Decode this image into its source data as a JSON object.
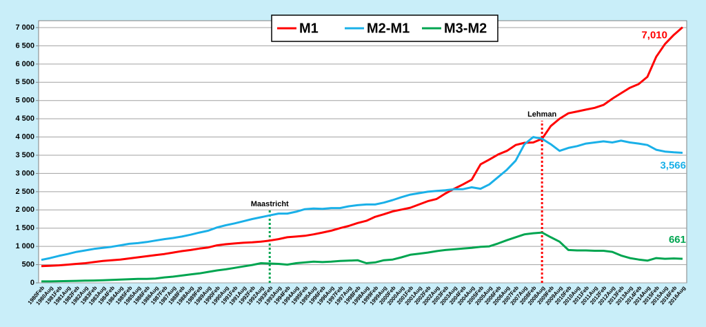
{
  "chart_data": {
    "type": "line",
    "categories": [
      "1980Feb",
      "1980Aug",
      "1981Feb",
      "1981Aug",
      "1982Feb",
      "1982Aug",
      "1983Feb",
      "1983Aug",
      "1984Feb",
      "1984Aug",
      "1985Feb",
      "1985Aug",
      "1986Feb",
      "1986Aug",
      "1987Feb",
      "1987Aug",
      "1988Feb",
      "1988Aug",
      "1989Feb",
      "1989Aug",
      "1990Feb",
      "1990Aug",
      "1991Feb",
      "1991Aug",
      "1992Feb",
      "1992Aug",
      "1993Feb",
      "1993Aug",
      "1994Feb",
      "1994Aug",
      "1995Feb",
      "1995Aug",
      "1996Feb",
      "1996Aug",
      "1997Feb",
      "1997Aug",
      "1998Feb",
      "1998Aug",
      "1999Feb",
      "1999Aug",
      "2000Feb",
      "2000Aug",
      "2001Feb",
      "2001Aug",
      "2002Feb",
      "2002Aug",
      "2003Feb",
      "2003Aug",
      "2004Feb",
      "2004Aug",
      "2005Feb",
      "2005Aug",
      "2006Feb",
      "2006Aug",
      "2007Feb",
      "2007Aug",
      "2008Feb",
      "2008Aug",
      "2009Feb",
      "2009Aug",
      "2010Feb",
      "2010Aug",
      "2011Feb",
      "2011Aug",
      "2012Feb",
      "2012Aug",
      "2013Feb",
      "2013Aug",
      "2014Feb",
      "2014Aug",
      "2015Feb",
      "2015Aug",
      "2016Feb",
      "2016Aug"
    ],
    "series": [
      {
        "name": "M1",
        "color": "#ff0000",
        "end_label": "7,010",
        "values": [
          460,
          470,
          480,
          500,
          520,
          540,
          570,
          600,
          620,
          640,
          670,
          700,
          730,
          760,
          790,
          830,
          870,
          900,
          940,
          970,
          1030,
          1060,
          1080,
          1100,
          1110,
          1130,
          1160,
          1200,
          1250,
          1270,
          1290,
          1330,
          1380,
          1430,
          1500,
          1560,
          1640,
          1700,
          1810,
          1880,
          1960,
          2010,
          2060,
          2150,
          2240,
          2300,
          2450,
          2580,
          2700,
          2830,
          3250,
          3380,
          3520,
          3620,
          3780,
          3840,
          3850,
          3950,
          4300,
          4500,
          4650,
          4700,
          4750,
          4800,
          4880,
          5050,
          5200,
          5350,
          5450,
          5650,
          6200,
          6550,
          6800,
          7010
        ]
      },
      {
        "name": "M2-M1",
        "color": "#1ab0e8",
        "end_label": "3,566",
        "values": [
          630,
          680,
          740,
          790,
          850,
          890,
          930,
          960,
          990,
          1030,
          1070,
          1090,
          1120,
          1160,
          1200,
          1230,
          1270,
          1320,
          1380,
          1430,
          1520,
          1580,
          1630,
          1690,
          1750,
          1800,
          1850,
          1900,
          1900,
          1950,
          2020,
          2040,
          2030,
          2050,
          2050,
          2100,
          2130,
          2150,
          2150,
          2200,
          2270,
          2350,
          2420,
          2460,
          2500,
          2520,
          2540,
          2570,
          2570,
          2620,
          2580,
          2700,
          2900,
          3100,
          3350,
          3800,
          4000,
          3950,
          3800,
          3620,
          3700,
          3750,
          3820,
          3850,
          3880,
          3850,
          3900,
          3850,
          3820,
          3780,
          3650,
          3600,
          3580,
          3566
        ]
      },
      {
        "name": "M3-M2",
        "color": "#00a550",
        "end_label": "661",
        "values": [
          40,
          40,
          45,
          50,
          55,
          60,
          65,
          70,
          80,
          90,
          100,
          110,
          110,
          120,
          150,
          170,
          200,
          230,
          260,
          300,
          340,
          370,
          410,
          450,
          490,
          540,
          530,
          520,
          500,
          540,
          560,
          580,
          570,
          580,
          600,
          610,
          620,
          540,
          560,
          620,
          640,
          700,
          770,
          800,
          830,
          870,
          900,
          920,
          940,
          960,
          990,
          1000,
          1080,
          1170,
          1250,
          1330,
          1360,
          1380,
          1250,
          1130,
          900,
          890,
          890,
          880,
          880,
          850,
          750,
          680,
          640,
          610,
          680,
          660,
          670,
          661
        ]
      }
    ],
    "markers": [
      {
        "label": "Maastricht",
        "category": "1993Feb",
        "color": "#00a550"
      },
      {
        "label": "Lehman",
        "category": "2008Aug",
        "color": "#ff0000"
      }
    ],
    "ylim": [
      0,
      7000
    ],
    "yticks": [
      0,
      500,
      {
        "value": 1000,
        "label": "1 000"
      },
      {
        "value": 1500,
        "label": "1 500"
      },
      {
        "value": 2000,
        "label": "2 000"
      },
      {
        "value": 2500,
        "label": "2 500"
      },
      {
        "value": 3000,
        "label": "3 000"
      },
      {
        "value": 3500,
        "label": "3 500"
      },
      {
        "value": 4000,
        "label": "4 000"
      },
      {
        "value": 4500,
        "label": "4 500"
      },
      {
        "value": 5000,
        "label": "5 000"
      },
      {
        "value": 5500,
        "label": "5 500"
      },
      {
        "value": 6000,
        "label": "6 000"
      },
      {
        "value": 6500,
        "label": "6 500"
      },
      {
        "value": 7000,
        "label": "7 000"
      }
    ],
    "grid": true
  }
}
